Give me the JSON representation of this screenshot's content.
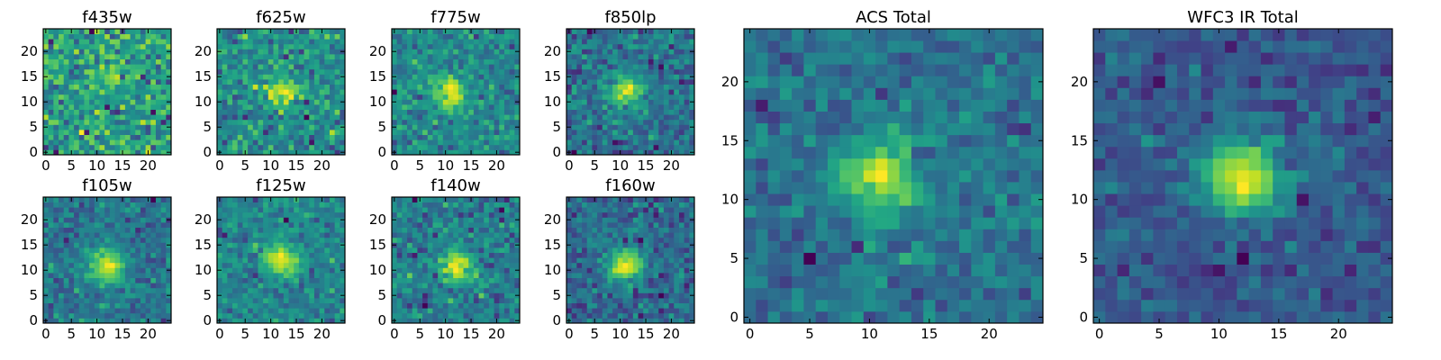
{
  "figure": {
    "description_free": true
  },
  "chart_data": [
    {
      "type": "heatmap",
      "title": "f435w",
      "xticks": [
        0,
        5,
        10,
        15,
        20
      ],
      "yticks": [
        0,
        5,
        10,
        15,
        20
      ],
      "xlim": [
        -0.5,
        24.5
      ],
      "ylim": [
        -0.5,
        24.5
      ],
      "shape": [
        25,
        25
      ],
      "blob_center": [
        12,
        16
      ],
      "blob_strength": 0.25,
      "noise": 0.9,
      "colormap": "viridis"
    },
    {
      "type": "heatmap",
      "title": "f625w",
      "xticks": [
        0,
        5,
        10,
        15,
        20
      ],
      "yticks": [
        0,
        5,
        10,
        15,
        20
      ],
      "xlim": [
        -0.5,
        24.5
      ],
      "ylim": [
        -0.5,
        24.5
      ],
      "shape": [
        25,
        25
      ],
      "blob_center": [
        12,
        12
      ],
      "blob_strength": 0.45,
      "noise": 0.75,
      "colormap": "viridis"
    },
    {
      "type": "heatmap",
      "title": "f775w",
      "xticks": [
        0,
        5,
        10,
        15,
        20
      ],
      "yticks": [
        0,
        5,
        10,
        15,
        20
      ],
      "xlim": [
        -0.5,
        24.5
      ],
      "ylim": [
        -0.5,
        24.5
      ],
      "shape": [
        25,
        25
      ],
      "blob_center": [
        11,
        12
      ],
      "blob_strength": 0.6,
      "noise": 0.6,
      "colormap": "viridis"
    },
    {
      "type": "heatmap",
      "title": "f850lp",
      "xticks": [
        0,
        5,
        10,
        15,
        20
      ],
      "yticks": [
        0,
        5,
        10,
        15,
        20
      ],
      "xlim": [
        -0.5,
        24.5
      ],
      "ylim": [
        -0.5,
        24.5
      ],
      "shape": [
        25,
        25
      ],
      "blob_center": [
        11,
        12
      ],
      "blob_strength": 0.6,
      "noise": 0.6,
      "colormap": "viridis"
    },
    {
      "type": "heatmap",
      "title": "f105w",
      "xticks": [
        0,
        5,
        10,
        15,
        20
      ],
      "yticks": [
        0,
        5,
        10,
        15,
        20
      ],
      "xlim": [
        -0.5,
        24.5
      ],
      "ylim": [
        -0.5,
        24.5
      ],
      "shape": [
        25,
        25
      ],
      "blob_center": [
        12,
        11
      ],
      "blob_strength": 0.55,
      "noise": 0.5,
      "colormap": "viridis"
    },
    {
      "type": "heatmap",
      "title": "f125w",
      "xticks": [
        0,
        5,
        10,
        15,
        20
      ],
      "yticks": [
        0,
        5,
        10,
        15,
        20
      ],
      "xlim": [
        -0.5,
        24.5
      ],
      "ylim": [
        -0.5,
        24.5
      ],
      "shape": [
        25,
        25
      ],
      "blob_center": [
        12,
        12
      ],
      "blob_strength": 0.55,
      "noise": 0.5,
      "colormap": "viridis"
    },
    {
      "type": "heatmap",
      "title": "f140w",
      "xticks": [
        0,
        5,
        10,
        15,
        20
      ],
      "yticks": [
        0,
        5,
        10,
        15,
        20
      ],
      "xlim": [
        -0.5,
        24.5
      ],
      "ylim": [
        -0.5,
        24.5
      ],
      "shape": [
        25,
        25
      ],
      "blob_center": [
        12,
        11
      ],
      "blob_strength": 0.5,
      "noise": 0.5,
      "colormap": "viridis"
    },
    {
      "type": "heatmap",
      "title": "f160w",
      "xticks": [
        0,
        5,
        10,
        15,
        20
      ],
      "yticks": [
        0,
        5,
        10,
        15,
        20
      ],
      "xlim": [
        -0.5,
        24.5
      ],
      "ylim": [
        -0.5,
        24.5
      ],
      "shape": [
        25,
        25
      ],
      "blob_center": [
        11,
        11
      ],
      "blob_strength": 0.65,
      "noise": 0.5,
      "colormap": "viridis"
    },
    {
      "type": "heatmap",
      "title": "ACS Total",
      "xticks": [
        0,
        5,
        10,
        15,
        20
      ],
      "yticks": [
        0,
        5,
        10,
        15,
        20
      ],
      "xlim": [
        -0.5,
        24.5
      ],
      "ylim": [
        -0.5,
        24.5
      ],
      "shape": [
        25,
        25
      ],
      "blob_center": [
        11,
        12
      ],
      "blob_strength": 0.55,
      "noise": 0.5,
      "colormap": "viridis"
    },
    {
      "type": "heatmap",
      "title": "WFC3 IR Total",
      "xticks": [
        0,
        5,
        10,
        15,
        20
      ],
      "yticks": [
        0,
        5,
        10,
        15,
        20
      ],
      "xlim": [
        -0.5,
        24.5
      ],
      "ylim": [
        -0.5,
        24.5
      ],
      "shape": [
        25,
        25
      ],
      "blob_center": [
        12,
        12
      ],
      "blob_strength": 0.7,
      "noise": 0.35,
      "colormap": "viridis"
    }
  ]
}
